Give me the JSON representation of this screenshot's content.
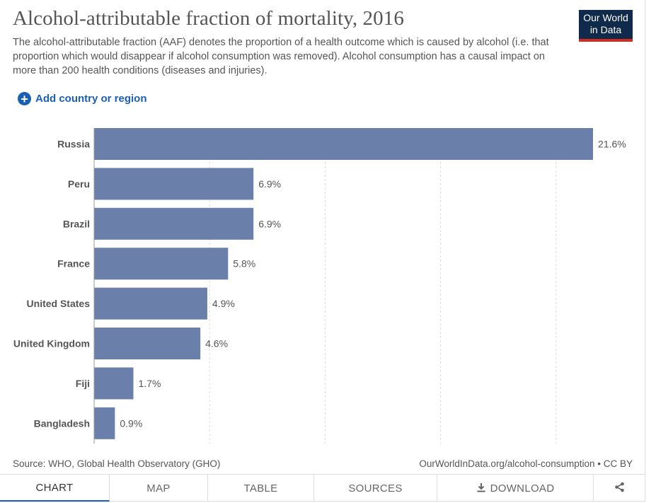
{
  "title": "Alcohol-attributable fraction of mortality, 2016",
  "subtitle": "The alcohol-attributable fraction (AAF) denotes the proportion of a health outcome which is caused by alcohol (i.e. that proportion which would disappear if alcohol consumption was removed). Alcohol consumption has a causal impact on more than 200 health conditions (diseases and injuries).",
  "logo": {
    "line1": "Our World",
    "line2": "in Data"
  },
  "add_country": {
    "icon": "plus-circle-icon",
    "label": "Add country or region"
  },
  "source": "Source: WHO, Global Health Observatory (GHO)",
  "url": "OurWorldInData.org/alcohol-consumption • CC BY",
  "tabs": [
    {
      "label": "CHART",
      "active": true
    },
    {
      "label": "MAP"
    },
    {
      "label": "TABLE"
    },
    {
      "label": "SOURCES"
    },
    {
      "label": "DOWNLOAD",
      "icon": "download-icon"
    },
    {
      "label": "",
      "icon": "share-icon"
    }
  ],
  "colors": {
    "bar": "#6a80aa",
    "accent": "#1a5fb4",
    "logo_bg": "#0f2a4a",
    "logo_stripe": "#d42b21"
  },
  "chart_data": {
    "type": "bar",
    "orientation": "horizontal",
    "categories": [
      "Russia",
      "Peru",
      "Brazil",
      "France",
      "United States",
      "United Kingdom",
      "Fiji",
      "Bangladesh"
    ],
    "values": [
      21.6,
      6.9,
      6.9,
      5.8,
      4.9,
      4.6,
      1.7,
      0.9
    ],
    "value_labels": [
      "21.6%",
      "6.9%",
      "6.9%",
      "5.8%",
      "4.9%",
      "4.6%",
      "1.7%",
      "0.9%"
    ],
    "xlim": [
      0,
      21.6
    ],
    "gridlines": [
      5,
      10,
      15,
      20
    ],
    "grid": true
  }
}
